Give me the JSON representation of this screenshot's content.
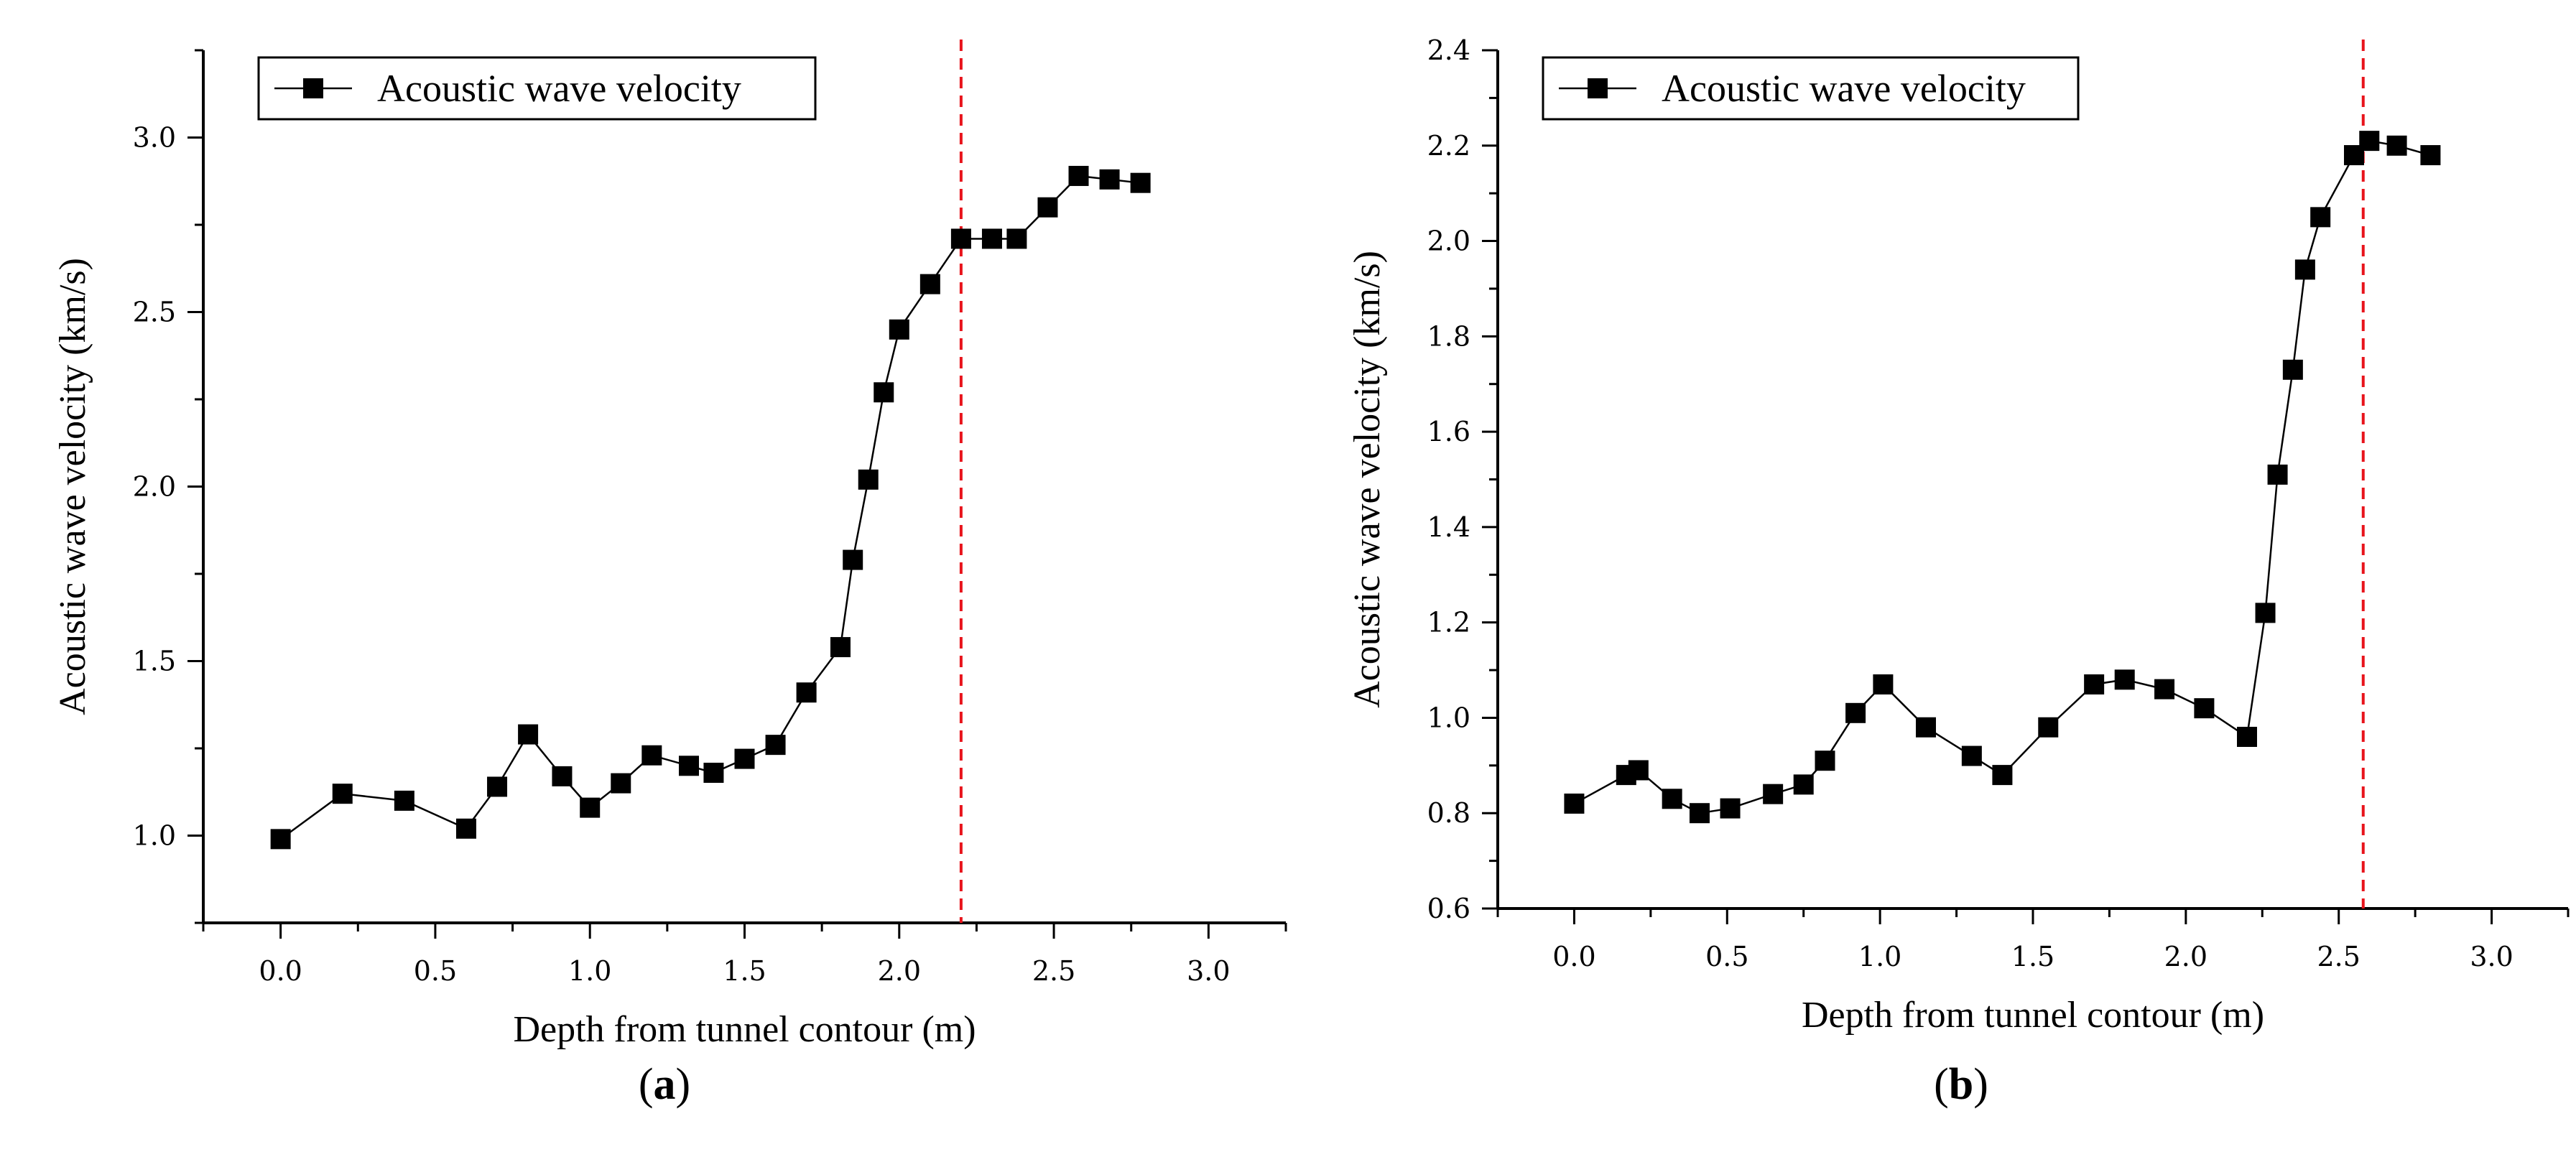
{
  "chart_data": [
    {
      "type": "line",
      "panel_label": "a",
      "title": "",
      "xlabel": "Depth from tunnel contour (m)",
      "ylabel": "Acoustic wave velocity (km/s)",
      "xlim": [
        -0.25,
        3.25
      ],
      "ylim": [
        0.75,
        3.25
      ],
      "xticks": [
        0.0,
        0.5,
        1.0,
        1.5,
        2.0,
        2.5,
        3.0
      ],
      "xtick_labels": [
        "0.0",
        "0.5",
        "1.0",
        "1.5",
        "2.0",
        "2.5",
        "3.0"
      ],
      "yticks": [
        1.0,
        1.5,
        2.0,
        2.5,
        3.0
      ],
      "ytick_labels": [
        "1.0",
        "1.5",
        "2.0",
        "2.5",
        "3.0"
      ],
      "grid": false,
      "legend": "top-left",
      "reference_line": {
        "x": 2.2,
        "color": "#e8141c",
        "style": "dashed"
      },
      "series": [
        {
          "name": "Acoustic wave velocity",
          "x": [
            0.0,
            0.2,
            0.4,
            0.6,
            0.7,
            0.8,
            0.91,
            1.0,
            1.1,
            1.2,
            1.32,
            1.4,
            1.5,
            1.6,
            1.7,
            1.81,
            1.85,
            1.9,
            1.95,
            2.0,
            2.1,
            2.2,
            2.3,
            2.38,
            2.48,
            2.58,
            2.68,
            2.78
          ],
          "values": [
            0.99,
            1.12,
            1.1,
            1.02,
            1.14,
            1.29,
            1.17,
            1.08,
            1.15,
            1.23,
            1.2,
            1.18,
            1.22,
            1.26,
            1.41,
            1.54,
            1.79,
            2.02,
            2.27,
            2.45,
            2.58,
            2.71,
            2.71,
            2.71,
            2.8,
            2.89,
            2.88,
            2.87
          ]
        }
      ]
    },
    {
      "type": "line",
      "panel_label": "b",
      "title": "",
      "xlabel": "Depth from tunnel contour (m)",
      "ylabel": "Acoustic wave velocity (km/s)",
      "xlim": [
        -0.25,
        3.25
      ],
      "ylim": [
        0.6,
        2.4
      ],
      "xticks": [
        0.0,
        0.5,
        1.0,
        1.5,
        2.0,
        2.5,
        3.0
      ],
      "xtick_labels": [
        "0.0",
        "0.5",
        "1.0",
        "1.5",
        "2.0",
        "2.5",
        "3.0"
      ],
      "yticks": [
        0.6,
        0.8,
        1.0,
        1.2,
        1.4,
        1.6,
        1.8,
        2.0,
        2.2,
        2.4
      ],
      "ytick_labels": [
        "0.6",
        "0.8",
        "1.0",
        "1.2",
        "1.4",
        "1.6",
        "1.8",
        "2.0",
        "2.2",
        "2.4"
      ],
      "grid": false,
      "legend": "top-left",
      "reference_line": {
        "x": 2.58,
        "color": "#e8141c",
        "style": "dashed"
      },
      "series": [
        {
          "name": "Acoustic wave velocity",
          "x": [
            0.0,
            0.17,
            0.21,
            0.32,
            0.41,
            0.51,
            0.65,
            0.75,
            0.82,
            0.92,
            1.01,
            1.15,
            1.3,
            1.4,
            1.55,
            1.7,
            1.8,
            1.93,
            2.06,
            2.2,
            2.26,
            2.3,
            2.35,
            2.39,
            2.44,
            2.55,
            2.6,
            2.69,
            2.8
          ],
          "values": [
            0.82,
            0.88,
            0.89,
            0.83,
            0.8,
            0.81,
            0.84,
            0.86,
            0.91,
            1.01,
            1.07,
            0.98,
            0.92,
            0.88,
            0.98,
            1.07,
            1.08,
            1.06,
            1.02,
            0.96,
            1.22,
            1.51,
            1.73,
            1.94,
            2.05,
            2.18,
            2.21,
            2.2,
            2.18
          ]
        }
      ]
    }
  ]
}
